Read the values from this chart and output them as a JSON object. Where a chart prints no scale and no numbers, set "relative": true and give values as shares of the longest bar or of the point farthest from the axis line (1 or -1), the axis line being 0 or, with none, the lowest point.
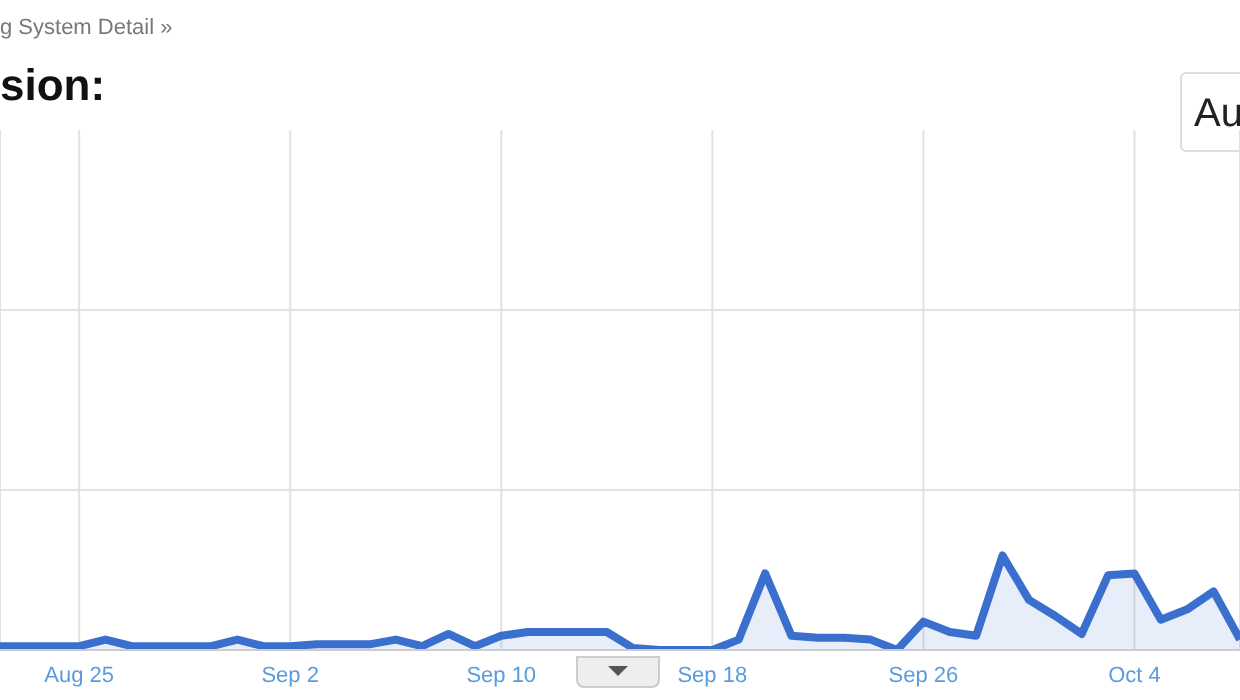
{
  "chart_data": {
    "type": "area",
    "title": "sion:",
    "annotations": [
      "g System Detail »",
      "Au"
    ],
    "categories": [
      null,
      null,
      null,
      "Aug 25",
      null,
      null,
      null,
      null,
      null,
      null,
      null,
      "Sep 2",
      null,
      null,
      null,
      null,
      null,
      null,
      null,
      "Sep 10",
      null,
      null,
      null,
      null,
      null,
      null,
      null,
      "Sep 18",
      null,
      null,
      null,
      null,
      null,
      null,
      null,
      "Sep 26",
      null,
      null,
      null,
      null,
      null,
      null,
      null,
      "Oct 4",
      null,
      null,
      null,
      null
    ],
    "series": [
      {
        "color": "#3a6fce",
        "values": [
          0.04,
          0.04,
          0.04,
          0.04,
          0.11,
          0.04,
          0.04,
          0.04,
          0.04,
          0.11,
          0.04,
          0.04,
          0.06,
          0.06,
          0.06,
          0.11,
          0.04,
          0.17,
          0.04,
          0.15,
          0.19,
          0.19,
          0.19,
          0.19,
          0.02,
          0,
          0,
          0,
          0.11,
          0.81,
          0.15,
          0.13,
          0.13,
          0.11,
          0,
          0.3,
          0.19,
          0.15,
          1,
          0.53,
          0.36,
          0.17,
          0.79,
          0.81,
          0.32,
          0.43,
          0.62,
          0.11
        ]
      }
    ],
    "relative": true,
    "grid": true,
    "marker": "none",
    "legend": false
  }
}
